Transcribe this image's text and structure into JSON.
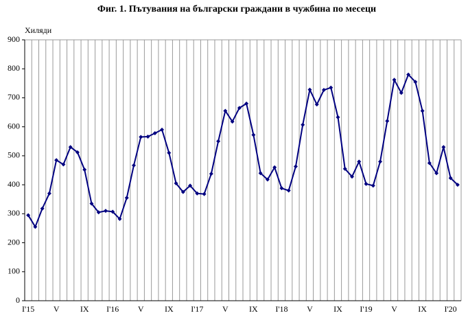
{
  "chart_data": {
    "type": "line",
    "title": "Фиг. 1. Пътувания на български граждани в чужбина по месеци",
    "y_label": "Хиляди",
    "categories": [
      "I'15",
      null,
      null,
      null,
      "V",
      null,
      null,
      null,
      "IX",
      null,
      null,
      null,
      "I'16",
      null,
      null,
      null,
      "V",
      null,
      null,
      null,
      "IX",
      null,
      null,
      null,
      "I'17",
      null,
      null,
      null,
      "V",
      null,
      null,
      null,
      "IX",
      null,
      null,
      null,
      "I'18",
      null,
      null,
      null,
      "V",
      null,
      null,
      null,
      "IX",
      null,
      null,
      null,
      "I'19",
      null,
      null,
      null,
      "V",
      null,
      null,
      null,
      "IX",
      null,
      null,
      null,
      "I'20",
      null
    ],
    "values": [
      295,
      255,
      318,
      370,
      485,
      470,
      530,
      512,
      452,
      335,
      305,
      310,
      307,
      282,
      355,
      467,
      565,
      566,
      578,
      590,
      510,
      405,
      375,
      397,
      370,
      368,
      438,
      550,
      655,
      618,
      665,
      680,
      572,
      440,
      418,
      460,
      388,
      380,
      463,
      607,
      728,
      677,
      727,
      735,
      633,
      455,
      428,
      480,
      403,
      397,
      480,
      620,
      762,
      717,
      780,
      755,
      655,
      475,
      440,
      530,
      423,
      400
    ],
    "color": "#000080",
    "ylim": [
      0,
      900
    ],
    "yticks": [
      0,
      100,
      200,
      300,
      400,
      500,
      600,
      700,
      800,
      900
    ],
    "grid": true
  }
}
